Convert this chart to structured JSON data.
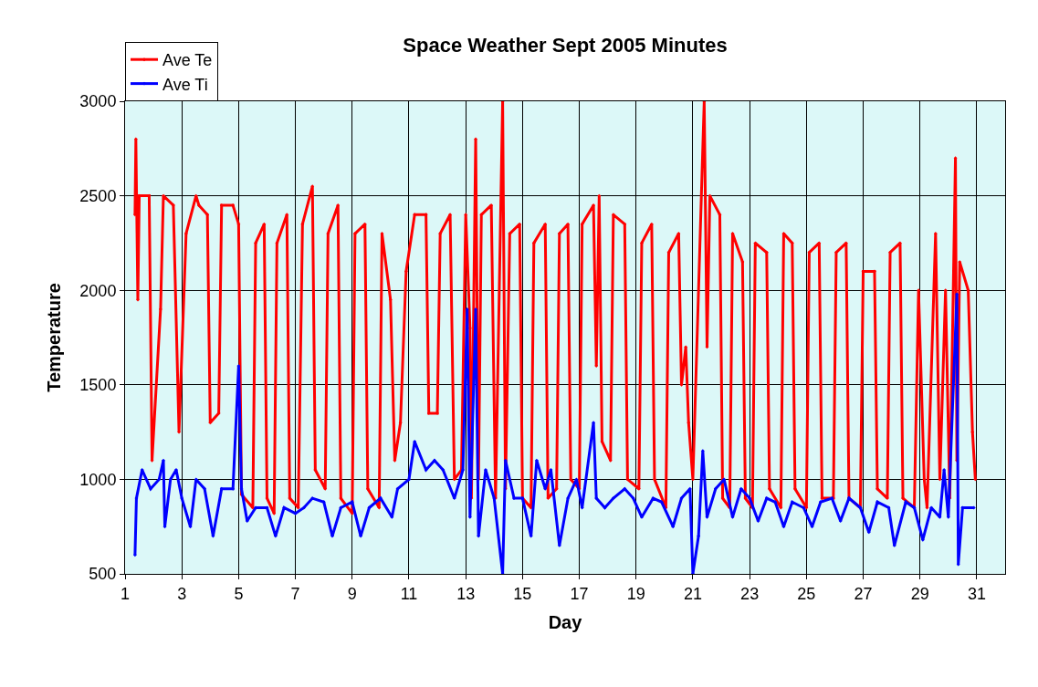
{
  "chart_data": {
    "type": "line",
    "title": "Space Weather Sept 2005 Minutes",
    "xlabel": "Day",
    "ylabel": "Temperature",
    "xlim": [
      1,
      32
    ],
    "xticks": [
      1,
      3,
      5,
      7,
      9,
      11,
      13,
      15,
      17,
      19,
      21,
      23,
      25,
      27,
      29,
      31
    ],
    "ylim": [
      500,
      3000
    ],
    "yticks": [
      500,
      1000,
      1500,
      2000,
      2500,
      3000
    ],
    "grid": true,
    "legend": "top left",
    "marker": "diamond",
    "line_style": "solid",
    "series": [
      {
        "name": "Ave Te",
        "color": "#ff0000",
        "x": [
          1.35,
          1.38,
          1.45,
          1.5,
          1.85,
          1.95,
          2.25,
          2.35,
          2.7,
          2.9,
          3.15,
          3.5,
          3.6,
          3.9,
          4.0,
          4.3,
          4.4,
          4.8,
          5.0,
          5.1,
          5.5,
          5.6,
          5.9,
          6.0,
          6.25,
          6.35,
          6.7,
          6.8,
          7.1,
          7.25,
          7.6,
          7.7,
          8.05,
          8.15,
          8.5,
          8.6,
          9.0,
          9.1,
          9.45,
          9.55,
          9.95,
          10.05,
          10.35,
          10.5,
          10.7,
          10.9,
          11.2,
          11.6,
          11.7,
          12.0,
          12.1,
          12.45,
          12.6,
          12.85,
          13.0,
          13.15,
          13.2,
          13.35,
          13.45,
          13.55,
          13.9,
          14.05,
          14.3,
          14.4,
          14.55,
          14.9,
          15.0,
          15.3,
          15.4,
          15.8,
          15.9,
          16.2,
          16.3,
          16.6,
          16.7,
          17.0,
          17.1,
          17.5,
          17.6,
          17.7,
          17.8,
          18.1,
          18.2,
          18.6,
          18.7,
          19.1,
          19.2,
          19.55,
          19.65,
          20.05,
          20.15,
          20.5,
          20.6,
          20.75,
          20.85,
          21.0,
          21.4,
          21.5,
          21.6,
          21.95,
          22.05,
          22.3,
          22.4,
          22.75,
          22.85,
          23.1,
          23.2,
          23.6,
          23.7,
          24.1,
          24.2,
          24.5,
          24.6,
          25.0,
          25.1,
          25.45,
          25.55,
          25.95,
          26.05,
          26.4,
          26.5,
          26.9,
          27.0,
          27.4,
          27.5,
          27.85,
          27.95,
          28.3,
          28.4,
          28.8,
          28.95,
          29.15,
          29.25,
          29.55,
          29.7,
          29.9,
          30.05,
          30.25,
          30.3,
          30.4,
          30.7,
          30.85,
          30.95
        ],
        "values": [
          2400,
          2800,
          1950,
          2500,
          2500,
          1100,
          1900,
          2500,
          2450,
          1250,
          2300,
          2500,
          2450,
          2400,
          1300,
          1350,
          2450,
          2450,
          2350,
          920,
          850,
          2250,
          2350,
          900,
          820,
          2250,
          2400,
          900,
          850,
          2350,
          2550,
          1050,
          950,
          2300,
          2450,
          900,
          820,
          2300,
          2350,
          950,
          850,
          2300,
          1950,
          1100,
          1300,
          2100,
          2400,
          2400,
          1350,
          1350,
          2300,
          2400,
          1000,
          1050,
          2400,
          1800,
          900,
          2800,
          1000,
          2400,
          2450,
          900,
          3000,
          950,
          2300,
          2350,
          900,
          850,
          2250,
          2350,
          900,
          950,
          2300,
          2350,
          1000,
          950,
          2350,
          2450,
          1600,
          2500,
          1200,
          1100,
          2400,
          2350,
          1000,
          950,
          2250,
          2350,
          1000,
          850,
          2200,
          2300,
          1500,
          1700,
          1300,
          1000,
          3000,
          1700,
          2500,
          2400,
          900,
          850,
          2300,
          2150,
          900,
          850,
          2250,
          2200,
          950,
          850,
          2300,
          2250,
          950,
          850,
          2200,
          2250,
          900,
          900,
          2200,
          2250,
          900,
          850,
          2100,
          2100,
          950,
          900,
          2200,
          2250,
          900,
          850,
          2000,
          1000,
          850,
          2300,
          1000,
          2000,
          900,
          2700,
          1100,
          2150,
          2000,
          1250,
          1000
        ]
      },
      {
        "name": "Ave Ti",
        "color": "#0000ff",
        "x": [
          1.35,
          1.4,
          1.6,
          1.9,
          2.2,
          2.35,
          2.4,
          2.6,
          2.8,
          3.0,
          3.3,
          3.5,
          3.8,
          4.1,
          4.4,
          4.8,
          5.0,
          5.1,
          5.3,
          5.6,
          6.0,
          6.3,
          6.6,
          7.0,
          7.3,
          7.6,
          8.0,
          8.3,
          8.6,
          9.0,
          9.3,
          9.6,
          10.0,
          10.4,
          10.6,
          11.0,
          11.2,
          11.6,
          11.9,
          12.2,
          12.6,
          12.9,
          13.05,
          13.15,
          13.35,
          13.45,
          13.7,
          14.0,
          14.3,
          14.4,
          14.7,
          15.0,
          15.3,
          15.5,
          15.8,
          16.0,
          16.3,
          16.6,
          16.9,
          17.1,
          17.5,
          17.6,
          17.9,
          18.2,
          18.6,
          18.9,
          19.2,
          19.6,
          19.9,
          20.3,
          20.6,
          20.9,
          21.0,
          21.2,
          21.35,
          21.5,
          21.8,
          22.1,
          22.4,
          22.7,
          23.0,
          23.3,
          23.6,
          23.9,
          24.2,
          24.5,
          24.9,
          25.2,
          25.5,
          25.9,
          26.2,
          26.5,
          26.9,
          27.2,
          27.5,
          27.9,
          28.1,
          28.5,
          28.8,
          29.1,
          29.4,
          29.7,
          29.85,
          30.0,
          30.3,
          30.35,
          30.5,
          30.9
        ],
        "values": [
          600,
          900,
          1050,
          950,
          1000,
          1100,
          750,
          1000,
          1050,
          900,
          750,
          1000,
          950,
          700,
          950,
          950,
          1600,
          950,
          780,
          850,
          850,
          700,
          850,
          820,
          850,
          900,
          880,
          700,
          850,
          880,
          700,
          850,
          900,
          800,
          950,
          1000,
          1200,
          1050,
          1100,
          1050,
          900,
          1050,
          1900,
          800,
          1900,
          700,
          1050,
          900,
          500,
          1100,
          900,
          900,
          700,
          1100,
          950,
          1050,
          650,
          900,
          1000,
          850,
          1300,
          900,
          850,
          900,
          950,
          900,
          800,
          900,
          880,
          750,
          900,
          950,
          500,
          700,
          1150,
          800,
          950,
          1000,
          800,
          950,
          900,
          780,
          900,
          880,
          750,
          880,
          850,
          750,
          880,
          900,
          780,
          900,
          850,
          720,
          880,
          850,
          650,
          880,
          850,
          680,
          850,
          800,
          1050,
          800,
          1980,
          550,
          850,
          850
        ]
      }
    ]
  }
}
